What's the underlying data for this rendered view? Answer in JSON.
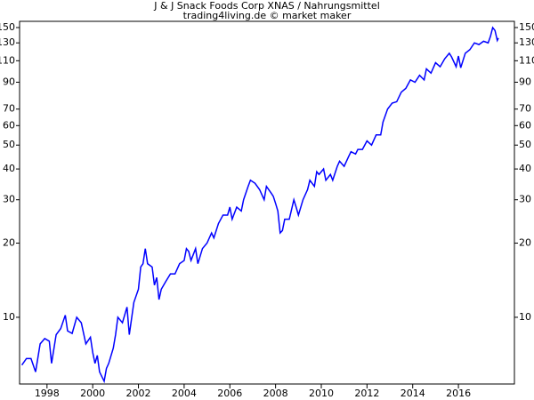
{
  "chart_data": {
    "type": "line",
    "title": "J & J Snack Foods Corp XNAS / Nahrungsmittel",
    "subtitle": "trading4living.de © market maker",
    "log_scale": true,
    "color": "#0000ff",
    "xlim": [
      1996.8,
      2018.45
    ],
    "xticks": [
      1998,
      2000,
      2002,
      2004,
      2006,
      2008,
      2010,
      2012,
      2014,
      2016
    ],
    "ylim": [
      5.36,
      159
    ],
    "yticks": [
      150,
      130,
      110,
      90,
      70,
      60,
      50,
      40,
      30,
      20,
      10
    ],
    "x": [
      1996.9,
      1997.1,
      1997.3,
      1997.5,
      1997.7,
      1997.9,
      1998.1,
      1998.2,
      1998.4,
      1998.6,
      1998.8,
      1998.9,
      1999.1,
      1999.3,
      1999.5,
      1999.7,
      1999.9,
      2000.0,
      2000.1,
      2000.2,
      2000.3,
      2000.5,
      2000.6,
      2000.7,
      2000.9,
      2001.0,
      2001.1,
      2001.3,
      2001.5,
      2001.6,
      2001.8,
      2002.0,
      2002.1,
      2002.2,
      2002.3,
      2002.4,
      2002.6,
      2002.7,
      2002.8,
      2002.9,
      2003.0,
      2003.2,
      2003.4,
      2003.6,
      2003.8,
      2004.0,
      2004.1,
      2004.2,
      2004.3,
      2004.5,
      2004.6,
      2004.8,
      2005.0,
      2005.2,
      2005.3,
      2005.5,
      2005.7,
      2005.9,
      2006.0,
      2006.1,
      2006.3,
      2006.5,
      2006.6,
      2006.8,
      2006.9,
      2007.1,
      2007.3,
      2007.5,
      2007.6,
      2007.8,
      2007.9,
      2008.0,
      2008.1,
      2008.2,
      2008.3,
      2008.4,
      2008.6,
      2008.8,
      2008.9,
      2009.0,
      2009.2,
      2009.4,
      2009.5,
      2009.7,
      2009.8,
      2009.9,
      2010.1,
      2010.2,
      2010.4,
      2010.5,
      2010.7,
      2010.8,
      2011.0,
      2011.2,
      2011.3,
      2011.5,
      2011.6,
      2011.8,
      2012.0,
      2012.2,
      2012.4,
      2012.6,
      2012.7,
      2012.9,
      2013.1,
      2013.3,
      2013.5,
      2013.7,
      2013.9,
      2014.1,
      2014.3,
      2014.5,
      2014.6,
      2014.8,
      2015.0,
      2015.2,
      2015.4,
      2015.6,
      2015.7,
      2015.9,
      2016.0,
      2016.1,
      2016.3,
      2016.5,
      2016.7,
      2016.9,
      2017.1,
      2017.3,
      2017.4,
      2017.5,
      2017.6,
      2017.7,
      2017.75
    ],
    "values": [
      6.4,
      6.8,
      6.8,
      6.0,
      7.8,
      8.2,
      8.0,
      6.5,
      8.5,
      9.0,
      10.2,
      8.8,
      8.6,
      10.0,
      9.5,
      7.8,
      8.3,
      7.2,
      6.5,
      7.0,
      6.0,
      5.5,
      6.2,
      6.5,
      7.5,
      8.5,
      10.0,
      9.5,
      11,
      8.5,
      11.5,
      13,
      16,
      16.5,
      19,
      16.5,
      16,
      13.5,
      14.5,
      11.8,
      13,
      14,
      15,
      15,
      16.5,
      17,
      19,
      18.5,
      17,
      19,
      16.5,
      19,
      20,
      22,
      21,
      24,
      26,
      26,
      28,
      25,
      28,
      27,
      30,
      34,
      36,
      35,
      33,
      30,
      34,
      32,
      31,
      29,
      27,
      22,
      22.5,
      25,
      25,
      30,
      28,
      26,
      30,
      33,
      36,
      34,
      39,
      38,
      40,
      36,
      38,
      36,
      41,
      43,
      41,
      45,
      47,
      46,
      48,
      48,
      52,
      50,
      55,
      55,
      62,
      70,
      74,
      75,
      82,
      85,
      92,
      90,
      96,
      92,
      102,
      98,
      108,
      104,
      112,
      118,
      114,
      104,
      115,
      103,
      118,
      122,
      130,
      128,
      132,
      130,
      138,
      150,
      146,
      133,
      136
    ]
  }
}
